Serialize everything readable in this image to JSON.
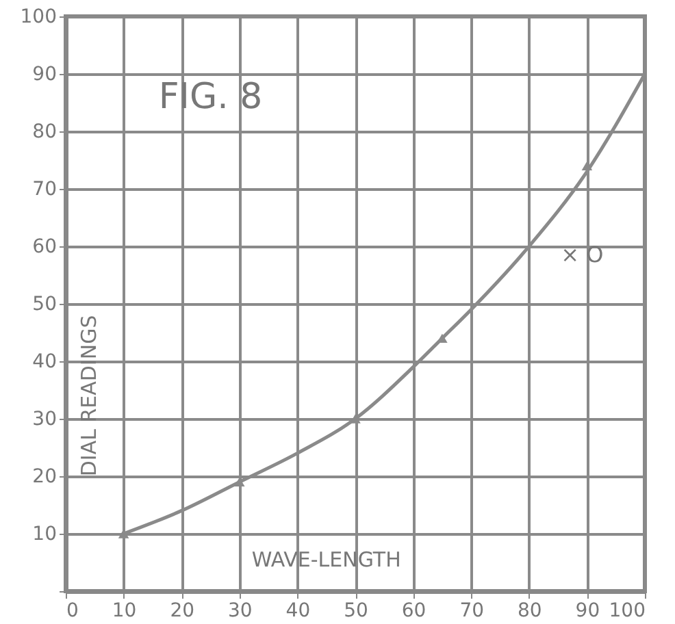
{
  "chart_data": {
    "type": "line",
    "title": "FIG. 8",
    "xlabel": "WAVE-LENGTH",
    "ylabel": "DIAL READINGS",
    "xlim": [
      0,
      100
    ],
    "ylim": [
      0,
      100
    ],
    "xticks": [
      0,
      10,
      20,
      30,
      40,
      50,
      60,
      70,
      80,
      90,
      100
    ],
    "yticks": [
      {
        "value": 0,
        "label": null
      },
      10,
      20,
      30,
      40,
      50,
      60,
      70,
      80,
      90,
      100
    ],
    "grid": true,
    "line_style": "solid",
    "series": [
      {
        "color": "#8a8a8a",
        "x": [
          10,
          20,
          30,
          40,
          50,
          60,
          65,
          70,
          80,
          90,
          100
        ],
        "values": [
          10,
          14,
          19,
          24,
          30,
          39,
          44,
          49,
          60,
          73,
          90
        ]
      },
      {
        "type": "scatter",
        "color": "#8a8a8a",
        "marker": "triangle",
        "x": [
          10,
          30,
          50,
          65,
          90
        ],
        "values": [
          10,
          19,
          30,
          44,
          74
        ]
      }
    ],
    "annotations": [
      "× O"
    ]
  }
}
